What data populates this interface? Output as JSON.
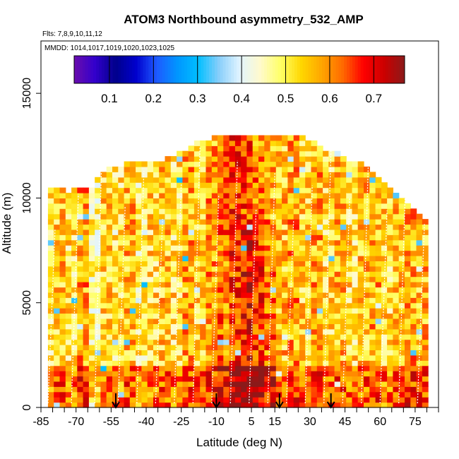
{
  "chart_data": {
    "type": "heatmap",
    "title": "ATOM3 Northbound asymmetry_532_AMP",
    "flights_label": "Flts: 7,8,9,10,11,12",
    "dates_label": "MMDD: 1014,1017,1019,1020,1023,1025",
    "xlabel": "Latitude (deg N)",
    "ylabel": "Altitude (m)",
    "xlim": [
      -85,
      85
    ],
    "ylim": [
      0,
      17500
    ],
    "x_ticks": [
      -85,
      -70,
      -55,
      -40,
      -25,
      -10,
      5,
      15,
      30,
      45,
      60,
      75
    ],
    "x_ticks_minor": [
      -80,
      -75,
      -65,
      -60,
      -50,
      -45,
      -35,
      -30,
      -20,
      -15,
      -5,
      0,
      10,
      20,
      25,
      35,
      40,
      50,
      55,
      65,
      70,
      80,
      85
    ],
    "y_ticks": [
      0,
      5000,
      10000,
      15000
    ],
    "colorbar": {
      "range": [
        0.02,
        0.77
      ],
      "ticks": [
        0.1,
        0.2,
        0.3,
        0.4,
        0.5,
        0.6,
        0.7
      ],
      "colors": [
        "#6a0dad",
        "#3300cc",
        "#00008b",
        "#0000cd",
        "#1e5aff",
        "#0096ff",
        "#00bfff",
        "#87cefa",
        "#e0f4ff",
        "#fffacd",
        "#ffff66",
        "#ffd700",
        "#ffa500",
        "#ff6a00",
        "#ff0000",
        "#cc0000",
        "#8b1a1a"
      ]
    },
    "profile_tops": [
      [
        -80,
        10400
      ],
      [
        -75,
        10200
      ],
      [
        -70,
        10300
      ],
      [
        -65,
        10400
      ],
      [
        -60,
        11200
      ],
      [
        -55,
        11300
      ],
      [
        -50,
        11600
      ],
      [
        -45,
        11500
      ],
      [
        -40,
        11600
      ],
      [
        -35,
        11600
      ],
      [
        -30,
        11900
      ],
      [
        -25,
        12200
      ],
      [
        -20,
        12500
      ],
      [
        -15,
        12700
      ],
      [
        -10,
        12800
      ],
      [
        -5,
        13000
      ],
      [
        0,
        13000
      ],
      [
        5,
        12900
      ],
      [
        10,
        12900
      ],
      [
        15,
        12900
      ],
      [
        20,
        12900
      ],
      [
        25,
        12800
      ],
      [
        30,
        12600
      ],
      [
        35,
        12200
      ],
      [
        40,
        12200
      ],
      [
        45,
        11700
      ],
      [
        50,
        11600
      ],
      [
        55,
        11200
      ],
      [
        60,
        10800
      ],
      [
        65,
        10200
      ],
      [
        70,
        9700
      ],
      [
        75,
        9200
      ],
      [
        80,
        8500
      ]
    ],
    "column_values": [
      0.5,
      0.55,
      0.52,
      0.58,
      0.48,
      0.54,
      0.51,
      0.56,
      0.5,
      0.53,
      0.55,
      0.52,
      0.57,
      0.54,
      0.58,
      0.61,
      0.66,
      0.64,
      0.6,
      0.56,
      0.55,
      0.58,
      0.54,
      0.57,
      0.53,
      0.56,
      0.52,
      0.55,
      0.57,
      0.53,
      0.55,
      0.58,
      0.56
    ],
    "arrows_lat": [
      -53,
      -10,
      17,
      39
    ],
    "flight_track_lats": [
      -82,
      -72,
      -62,
      -52,
      -44,
      -36,
      -28,
      -20,
      -12,
      -4,
      4,
      12,
      20,
      28,
      36,
      44,
      52,
      60,
      68,
      76
    ]
  }
}
